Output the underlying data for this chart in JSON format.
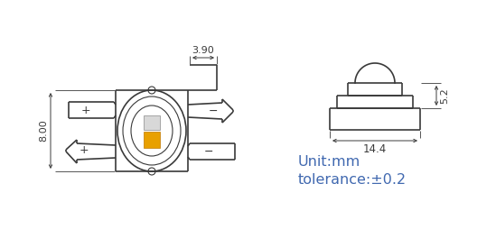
{
  "bg_color": "#ffffff",
  "line_color": "#3a3a3a",
  "text_color_brown": "#4169B0",
  "unit_text": "Unit:mm",
  "tolerance_text": "tolerance:±0.2",
  "dim_390": "3.90",
  "dim_800": "8.00",
  "dim_52": "5.2",
  "dim_144": "14.4",
  "lw": 1.2,
  "lw_thin": 0.8
}
